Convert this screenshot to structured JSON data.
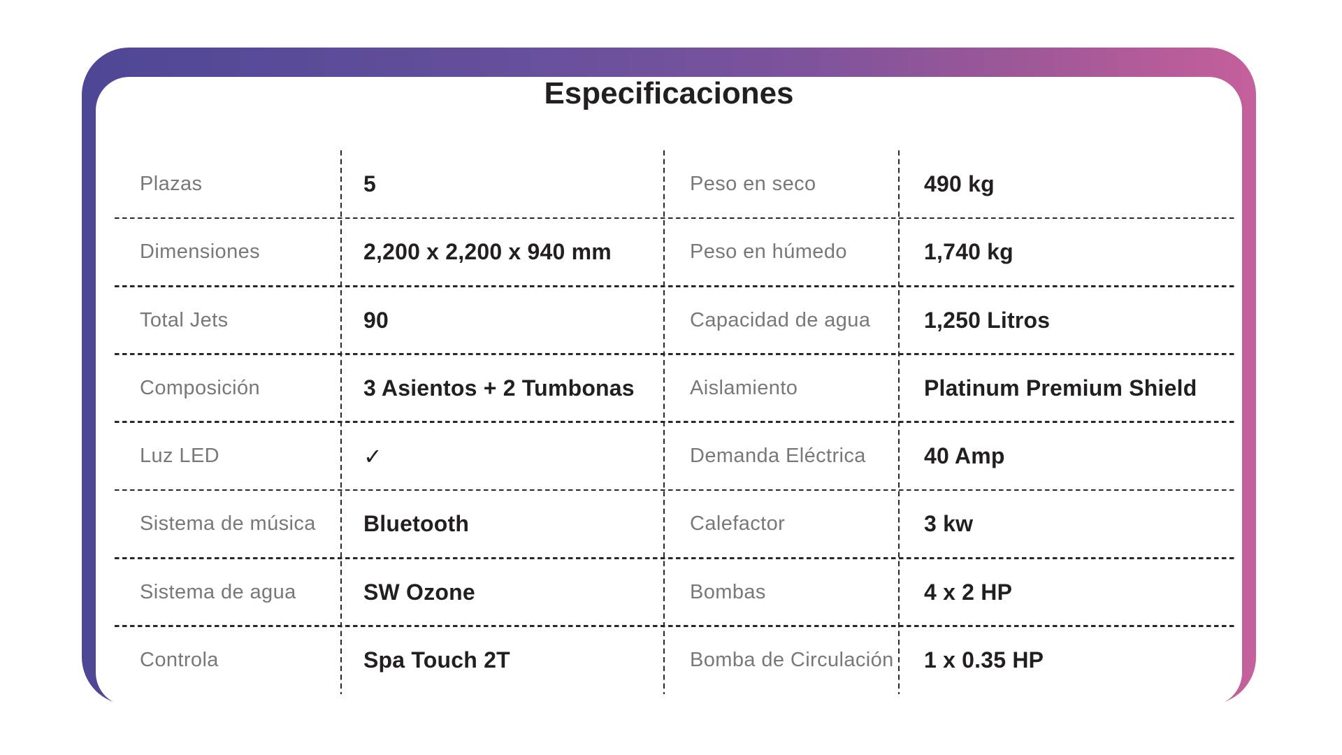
{
  "card": {
    "title": "Especificaciones"
  },
  "colors": {
    "gradient_start": "#4e4795",
    "gradient_mid": "#7e539c",
    "gradient_end": "#c5609b",
    "label_gray": "#77787a",
    "value_black": "#231f20",
    "dash_color": "#2b2628",
    "background": "#ffffff"
  },
  "icons": {
    "check": "✓"
  },
  "table": {
    "left": [
      {
        "label": "Plazas",
        "value": "5"
      },
      {
        "label": "Dimensiones",
        "value": "2,200 x 2,200 x 940 mm"
      },
      {
        "label": "Total Jets",
        "value": "90"
      },
      {
        "label": "Composición",
        "value": "3 Asientos + 2 Tumbonas"
      },
      {
        "label": "Luz LED",
        "value": "✓"
      },
      {
        "label": "Sistema de música",
        "value": "Bluetooth"
      },
      {
        "label": "Sistema de agua",
        "value": "SW Ozone"
      },
      {
        "label": "Controla",
        "value": "Spa Touch 2T"
      }
    ],
    "right": [
      {
        "label": "Peso en seco",
        "value": "490 kg"
      },
      {
        "label": "Peso en húmedo",
        "value": "1,740 kg"
      },
      {
        "label": "Capacidad de agua",
        "value": "1,250 Litros"
      },
      {
        "label": "Aislamiento",
        "value": "Platinum Premium Shield"
      },
      {
        "label": "Demanda Eléctrica",
        "value": "40 Amp"
      },
      {
        "label": "Calefactor",
        "value": "3 kw"
      },
      {
        "label": "Bombas",
        "value": "4 x 2 HP"
      },
      {
        "label": "Bomba de Circulación",
        "value": "1 x 0.35 HP"
      }
    ]
  }
}
